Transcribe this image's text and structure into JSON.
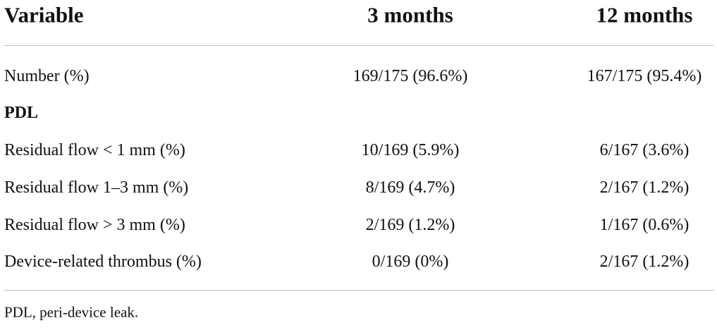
{
  "header": {
    "columns": [
      "Variable",
      "3 months",
      "12 months"
    ]
  },
  "table": {
    "rows": [
      [
        "Number (%)",
        "169/175 (96.6%)",
        "167/175 (95.4%)"
      ],
      [
        "PDL"
      ],
      [
        "Residual flow < 1 mm (%)",
        "10/169 (5.9%)",
        "6/167 (3.6%)"
      ],
      [
        "Residual flow 1–3 mm (%)",
        "8/169 (4.7%)",
        "2/167 (1.2%)"
      ],
      [
        "Residual flow > 3 mm (%)",
        "2/169 (1.2%)",
        "1/167 (0.6%)"
      ],
      [
        "Device-related thrombus (%)",
        "0/169 (0%)",
        "2/167 (1.2%)"
      ]
    ]
  },
  "footnote": "PDL, peri-device leak."
}
